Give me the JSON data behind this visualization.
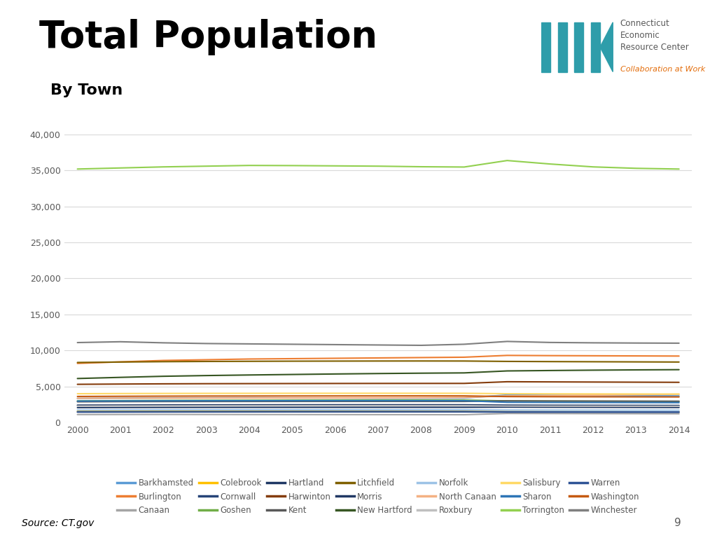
{
  "title": "Total Population",
  "subtitle": "By Town",
  "source": "Source: CT.gov",
  "page_number": "9",
  "years": [
    2000,
    2001,
    2002,
    2003,
    2004,
    2005,
    2006,
    2007,
    2008,
    2009,
    2010,
    2011,
    2012,
    2013,
    2014
  ],
  "towns": {
    "Barkhamsted": [
      3323,
      3360,
      3390,
      3400,
      3410,
      3390,
      3380,
      3360,
      3370,
      3380,
      3799,
      3760,
      3720,
      3690,
      3670
    ],
    "Burlington": [
      8190,
      8400,
      8600,
      8700,
      8800,
      8850,
      8900,
      8950,
      9000,
      9050,
      9301,
      9270,
      9250,
      9230,
      9210
    ],
    "Canaan": [
      1081,
      1090,
      1100,
      1090,
      1085,
      1080,
      1075,
      1070,
      1065,
      1060,
      1234,
      1220,
      1210,
      1200,
      1190
    ],
    "Colebrook": [
      1537,
      1550,
      1555,
      1550,
      1545,
      1540,
      1535,
      1530,
      1525,
      1520,
      1485,
      1475,
      1470,
      1460,
      1450
    ],
    "Cornwall": [
      1420,
      1430,
      1440,
      1445,
      1450,
      1455,
      1458,
      1460,
      1458,
      1455,
      1420,
      1415,
      1410,
      1405,
      1400
    ],
    "Goshen": [
      2976,
      3010,
      3040,
      3060,
      3070,
      3080,
      3090,
      3095,
      3100,
      3095,
      2976,
      2950,
      2930,
      2920,
      2910
    ],
    "Hartland": [
      2046,
      2060,
      2070,
      2075,
      2080,
      2082,
      2085,
      2087,
      2088,
      2087,
      2114,
      2100,
      2090,
      2080,
      2070
    ],
    "Harwinton": [
      5283,
      5320,
      5350,
      5370,
      5380,
      5390,
      5400,
      5405,
      5408,
      5410,
      5642,
      5620,
      5600,
      5580,
      5560
    ],
    "Kent": [
      2858,
      2880,
      2890,
      2895,
      2900,
      2905,
      2908,
      2910,
      2908,
      2905,
      2979,
      2960,
      2950,
      2940,
      2930
    ],
    "Litchfield": [
      8318,
      8380,
      8430,
      8460,
      8480,
      8500,
      8510,
      8520,
      8525,
      8520,
      8466,
      8440,
      8420,
      8400,
      8380
    ],
    "Morris": [
      2388,
      2400,
      2415,
      2425,
      2430,
      2435,
      2438,
      2440,
      2438,
      2435,
      2388,
      2370,
      2360,
      2350,
      2340
    ],
    "New Hartford": [
      6088,
      6250,
      6400,
      6500,
      6580,
      6650,
      6720,
      6780,
      6830,
      6870,
      7144,
      7200,
      7250,
      7290,
      7320
    ],
    "Norfolk": [
      1709,
      1720,
      1730,
      1735,
      1740,
      1742,
      1744,
      1745,
      1744,
      1742,
      1709,
      1700,
      1695,
      1690,
      1685
    ],
    "North Canaan": [
      3334,
      3350,
      3360,
      3370,
      3375,
      3380,
      3390,
      3400,
      3420,
      3450,
      3688,
      3720,
      3780,
      3840,
      3900
    ],
    "Roxbury": [
      2262,
      2280,
      2295,
      2305,
      2310,
      2315,
      2318,
      2320,
      2318,
      2315,
      2262,
      2250,
      2245,
      2240,
      2235
    ],
    "Salisbury": [
      3977,
      4000,
      4015,
      4025,
      4030,
      4035,
      4038,
      4040,
      4038,
      4035,
      3977,
      3960,
      3950,
      3940,
      3930
    ],
    "Sharon": [
      2951,
      2970,
      2985,
      2995,
      3000,
      3005,
      3008,
      3010,
      3008,
      3005,
      2782,
      2770,
      2760,
      2750,
      2740
    ],
    "Torrington": [
      35202,
      35350,
      35500,
      35600,
      35700,
      35680,
      35640,
      35600,
      35520,
      35480,
      36383,
      35900,
      35500,
      35300,
      35200
    ],
    "Warren": [
      1461,
      1470,
      1478,
      1483,
      1486,
      1488,
      1490,
      1491,
      1490,
      1488,
      1461,
      1455,
      1450,
      1445,
      1440
    ],
    "Washington": [
      3596,
      3620,
      3640,
      3655,
      3660,
      3665,
      3670,
      3675,
      3680,
      3675,
      3578,
      3560,
      3550,
      3540,
      3530
    ],
    "Winchester": [
      11084,
      11200,
      11050,
      10950,
      10900,
      10850,
      10800,
      10750,
      10700,
      10850,
      11242,
      11100,
      11050,
      11020,
      11000
    ]
  },
  "legend_order": [
    "Barkhamsted",
    "Burlington",
    "Canaan",
    "Colebrook",
    "Cornwall",
    "Goshen",
    "Hartland",
    "Harwinton",
    "Kent",
    "Litchfield",
    "Morris",
    "New Hartford",
    "Norfolk",
    "North Canaan",
    "Roxbury",
    "Salisbury",
    "Sharon",
    "Torrington",
    "Warren",
    "Washington",
    "Winchester"
  ],
  "colors": {
    "Barkhamsted": "#5B9BD5",
    "Burlington": "#ED7D31",
    "Canaan": "#A5A5A5",
    "Colebrook": "#FFC000",
    "Cornwall": "#264478",
    "Goshen": "#70AD47",
    "Hartland": "#1F3864",
    "Harwinton": "#843C0C",
    "Kent": "#595959",
    "Litchfield": "#7F6000",
    "Morris": "#203864",
    "New Hartford": "#375623",
    "Norfolk": "#9DC3E6",
    "North Canaan": "#F4B183",
    "Roxbury": "#BFBFBF",
    "Salisbury": "#FFD966",
    "Sharon": "#2E75B6",
    "Torrington": "#92D050",
    "Warren": "#2F5496",
    "Washington": "#C55A11",
    "Winchester": "#7F7F7F"
  },
  "ylim": [
    0,
    40000
  ],
  "yticks": [
    0,
    5000,
    10000,
    15000,
    20000,
    25000,
    30000,
    35000,
    40000
  ],
  "background_color": "#FFFFFF",
  "grid_color": "#D9D9D9",
  "cerc_text": "Connecticut\nEconomic\nResource Center",
  "cerc_tagline": "Collaboration at Work",
  "cerc_text_color": "#595959",
  "cerc_tagline_color": "#E36C0A",
  "title_fontsize": 38,
  "subtitle_fontsize": 16,
  "source_fontsize": 10,
  "legend_fontsize": 8.5
}
